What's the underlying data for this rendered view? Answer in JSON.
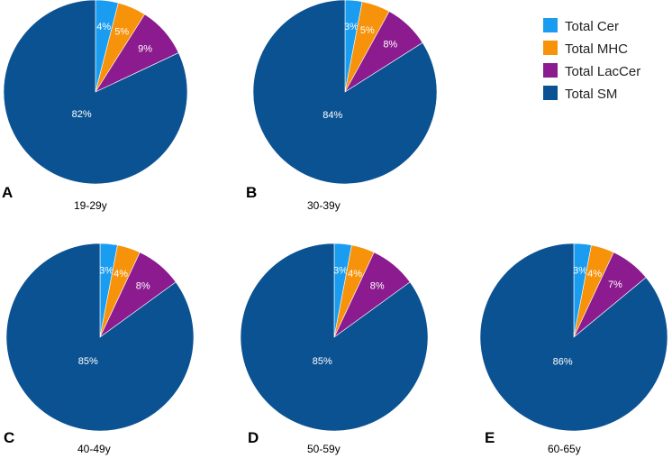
{
  "chart_data": {
    "type": "pie",
    "legend": {
      "placement": "top-right",
      "entries": [
        {
          "name": "Total Cer",
          "color": "#1a9df0"
        },
        {
          "name": "Total MHC",
          "color": "#f7920b"
        },
        {
          "name": "Total LacCer",
          "color": "#8b1b8e"
        },
        {
          "name": "Total SM",
          "color": "#0b5292"
        }
      ]
    },
    "panels": [
      {
        "letter": "A",
        "age_group": "19-29y",
        "values": [
          4,
          5,
          9,
          82
        ],
        "labels": [
          "4%",
          "5%",
          "9%",
          "82%"
        ]
      },
      {
        "letter": "B",
        "age_group": "30-39y",
        "values": [
          3,
          5,
          8,
          84
        ],
        "labels": [
          "3%",
          "5%",
          "8%",
          "84%"
        ]
      },
      {
        "letter": "C",
        "age_group": "40-49y",
        "values": [
          3,
          4,
          8,
          85
        ],
        "labels": [
          "3%",
          "4%",
          "8%",
          "85%"
        ]
      },
      {
        "letter": "D",
        "age_group": "50-59y",
        "values": [
          3,
          4,
          8,
          85
        ],
        "labels": [
          "3%",
          "4%",
          "8%",
          "85%"
        ]
      },
      {
        "letter": "E",
        "age_group": "60-65y",
        "values": [
          3,
          4,
          7,
          86
        ],
        "labels": [
          "3%",
          "4%",
          "7%",
          "86%"
        ]
      }
    ]
  }
}
